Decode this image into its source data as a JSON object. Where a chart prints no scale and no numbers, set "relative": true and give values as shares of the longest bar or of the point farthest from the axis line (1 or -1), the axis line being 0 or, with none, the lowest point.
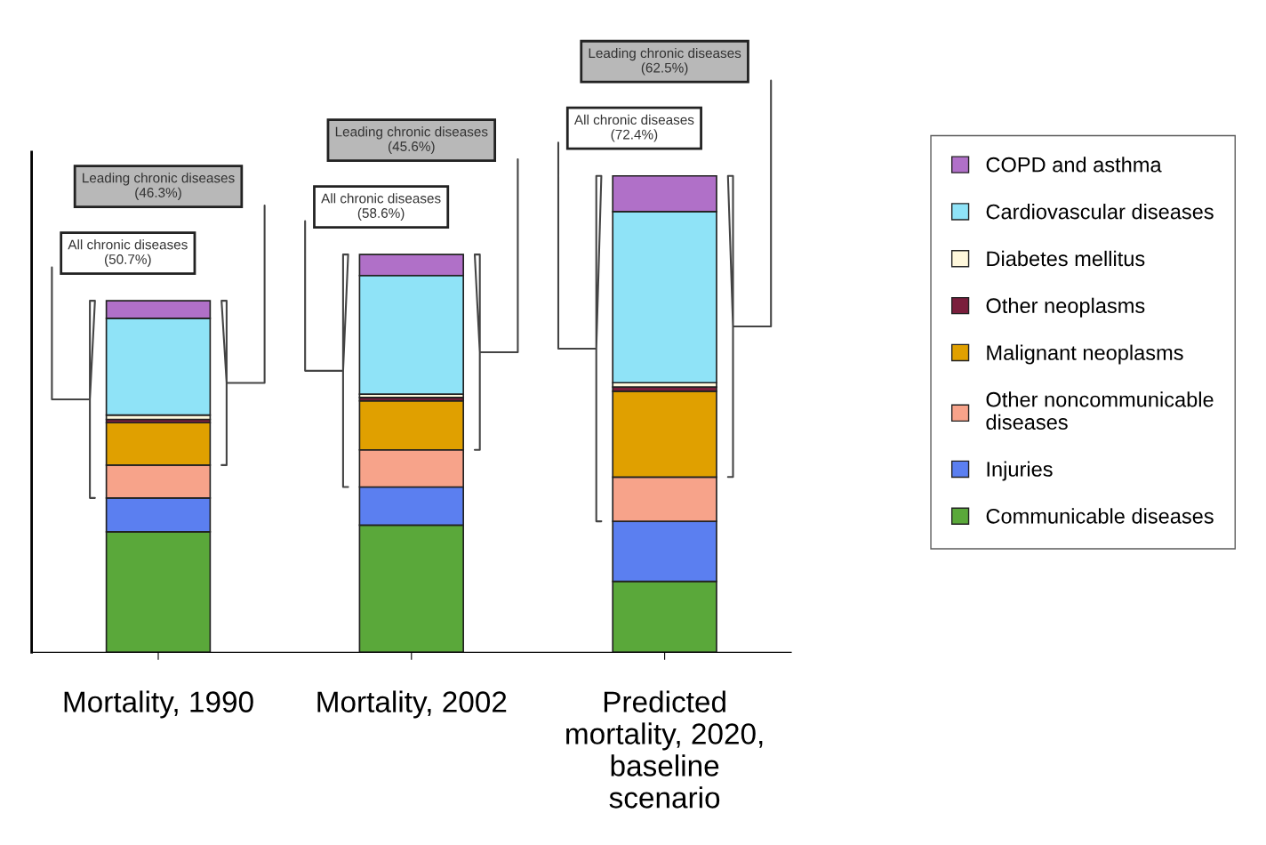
{
  "chart_data": {
    "type": "bar",
    "stacked": true,
    "relative": true,
    "legend": "right",
    "grid": false,
    "categories": [
      "Mortality, 1990",
      "Mortality, 2002",
      "Predicted\nmortality, 2020,\nbaseline\nscenario"
    ],
    "series": [
      {
        "name": "Communicable diseases",
        "color": "#5aa83a",
        "values": [
          0.253,
          0.267,
          0.149
        ]
      },
      {
        "name": "Injuries",
        "color": "#5b7ff0",
        "values": [
          0.071,
          0.08,
          0.126
        ]
      },
      {
        "name": "Other noncommunicable\ndiseases",
        "color": "#f7a38a",
        "values": [
          0.069,
          0.078,
          0.093
        ]
      },
      {
        "name": "Malignant neoplasms",
        "color": "#e0a000",
        "values": [
          0.089,
          0.103,
          0.18
        ]
      },
      {
        "name": "Other neoplasms",
        "color": "#7a1e3c",
        "values": [
          0.007,
          0.007,
          0.009
        ]
      },
      {
        "name": "Diabetes mellitus",
        "color": "#fff8dc",
        "values": [
          0.009,
          0.007,
          0.009
        ]
      },
      {
        "name": "Cardiovascular diseases",
        "color": "#8fe3f7",
        "values": [
          0.203,
          0.249,
          0.359
        ]
      },
      {
        "name": "COPD and asthma",
        "color": "#b070c8",
        "values": [
          0.037,
          0.044,
          0.075
        ]
      }
    ],
    "annotations": [
      "Leading chronic diseases\n(46.3%)",
      "All chronic diseases\n(50.7%)",
      "Leading chronic diseases\n(45.6%)",
      "All chronic diseases\n(58.6%)",
      "Leading chronic diseases\n(62.5%)",
      "All chronic diseases\n(72.4%)"
    ]
  }
}
